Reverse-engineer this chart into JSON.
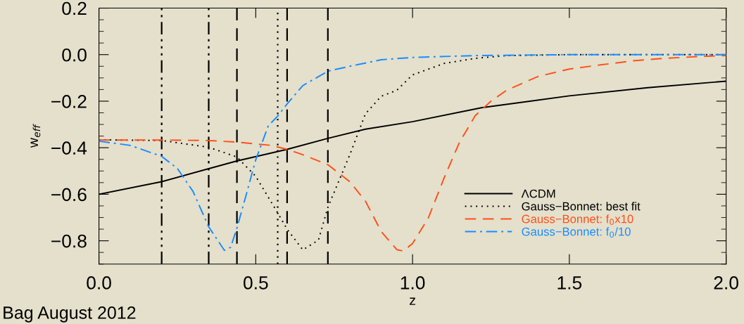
{
  "chart_data": {
    "type": "line",
    "xlabel": "z",
    "ylabel": "w$_{eff}$",
    "xlim": [
      0.0,
      2.0
    ],
    "xticks": [
      {
        "value": 0,
        "label": "0.0"
      },
      0.5,
      {
        "value": 1,
        "label": "1.0"
      },
      1.5,
      {
        "value": 2,
        "label": "2.0"
      }
    ],
    "ylim": [
      -0.9,
      0.2
    ],
    "yticks": [
      {
        "value": -0.8,
        "label": "−0.8"
      },
      {
        "value": -0.6,
        "label": "−0.6"
      },
      {
        "value": -0.4,
        "label": "−0.4"
      },
      {
        "value": -0.2,
        "label": "−0.2"
      },
      {
        "value": 0,
        "label": "0.0"
      },
      0.2
    ],
    "grid": false,
    "legend": "bottom right",
    "series": [
      {
        "name": "ΛCDM",
        "color": "#000000",
        "line_style": "solid",
        "x": [
          0,
          0.2,
          0.35,
          0.44,
          0.6,
          0.73,
          0.85,
          1.0,
          1.22,
          1.5,
          1.75,
          2.0
        ],
        "values": [
          -0.6,
          -0.546,
          -0.49,
          -0.457,
          -0.407,
          -0.36,
          -0.32,
          -0.288,
          -0.228,
          -0.177,
          -0.142,
          -0.114
        ]
      },
      {
        "name": "Gauss−Bonnet: best fit",
        "color": "#000000",
        "line_style": "dotted",
        "x": [
          0,
          0.2,
          0.35,
          0.44,
          0.5,
          0.57,
          0.6,
          0.65,
          0.7,
          0.73,
          0.8,
          0.85,
          0.9,
          0.95,
          1.0,
          1.1,
          1.2,
          1.3,
          1.5,
          2.0
        ],
        "values": [
          -0.366,
          -0.369,
          -0.398,
          -0.44,
          -0.523,
          -0.68,
          -0.75,
          -0.839,
          -0.797,
          -0.656,
          -0.43,
          -0.254,
          -0.179,
          -0.153,
          -0.087,
          -0.038,
          -0.016,
          -0.004,
          0,
          0
        ]
      },
      {
        "name": "Gauss−Bonnet: f$_{0}$x10",
        "color": "#ff4f1a",
        "line_style": "dashed",
        "x": [
          0,
          0.2,
          0.35,
          0.44,
          0.55,
          0.6,
          0.65,
          0.73,
          0.8,
          0.85,
          0.9,
          0.95,
          0.97,
          1.0,
          1.05,
          1.1,
          1.15,
          1.2,
          1.25,
          1.3,
          1.4,
          1.5,
          1.6,
          1.7,
          1.8,
          1.9,
          2.0
        ],
        "values": [
          -0.367,
          -0.367,
          -0.369,
          -0.376,
          -0.39,
          -0.407,
          -0.43,
          -0.473,
          -0.546,
          -0.63,
          -0.76,
          -0.838,
          -0.844,
          -0.812,
          -0.703,
          -0.532,
          -0.376,
          -0.262,
          -0.2,
          -0.153,
          -0.094,
          -0.062,
          -0.044,
          -0.027,
          -0.016,
          -0.009,
          -0.004
        ]
      },
      {
        "name": "Gauss−Bonnet: f$_{0}$/10",
        "color": "#1a8cff",
        "line_style": "dashdot",
        "x": [
          0,
          0.1,
          0.2,
          0.25,
          0.3,
          0.35,
          0.4,
          0.42,
          0.44,
          0.47,
          0.5,
          0.54,
          0.57,
          0.6,
          0.65,
          0.73,
          0.8,
          0.9,
          1.0,
          1.2,
          1.5,
          2.0
        ],
        "values": [
          -0.372,
          -0.39,
          -0.437,
          -0.489,
          -0.588,
          -0.74,
          -0.841,
          -0.828,
          -0.745,
          -0.6,
          -0.452,
          -0.306,
          -0.264,
          -0.212,
          -0.133,
          -0.071,
          -0.05,
          -0.022,
          -0.012,
          -0.004,
          0,
          0
        ]
      }
    ],
    "ref_lines": [
      {
        "axis": "x",
        "value": 0.2,
        "color": "#000000",
        "line_style": "dashdotdot"
      },
      {
        "axis": "x",
        "value": 0.35,
        "color": "#000000",
        "line_style": "dashdotdot"
      },
      {
        "axis": "x",
        "value": 0.44,
        "color": "#000000",
        "line_style": "dashed"
      },
      {
        "axis": "x",
        "value": 0.57,
        "color": "#000000",
        "line_style": "dotted"
      },
      {
        "axis": "x",
        "value": 0.6,
        "color": "#000000",
        "line_style": "dashed"
      },
      {
        "axis": "x",
        "value": 0.73,
        "color": "#000000",
        "line_style": "dashed"
      }
    ],
    "annotations": [
      "Bag August 2012"
    ]
  }
}
